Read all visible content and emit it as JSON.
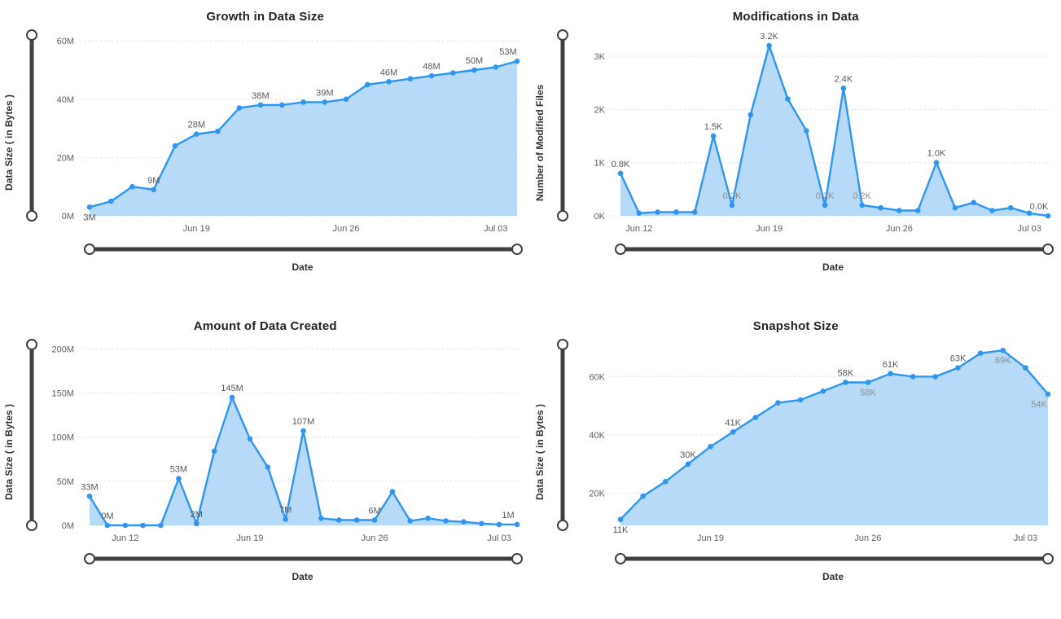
{
  "colors": {
    "line": "#2e96f0",
    "area_fill": "#a9d3f7",
    "grid": "#dddddd",
    "tick_label": "#605e5c",
    "point_label": "#595959",
    "point_label_muted": "#8f8d8b",
    "slider": "#3f3f3f",
    "handle_fill": "#ffffff",
    "title": "#252423"
  },
  "chart_data": [
    {
      "type": "area",
      "title": "Growth in Data Size",
      "xlabel": "Date",
      "ylabel": "Data Size ( in Bytes )",
      "legend": "none",
      "grid": "dotted-horizontal",
      "ylim": [
        0,
        62
      ],
      "yticks": [
        0,
        20,
        40,
        60
      ],
      "ytick_labels": [
        "0M",
        "20M",
        "40M",
        "60M"
      ],
      "xticks": [
        "Jun 19",
        "Jun 26",
        "Jul 03"
      ],
      "x": [
        "Jun 14",
        "Jun 15",
        "Jun 16",
        "Jun 17",
        "Jun 18",
        "Jun 19",
        "Jun 20",
        "Jun 21",
        "Jun 22",
        "Jun 23",
        "Jun 24",
        "Jun 25",
        "Jun 26",
        "Jun 27",
        "Jun 28",
        "Jun 29",
        "Jun 30",
        "Jul 01",
        "Jul 02",
        "Jul 03",
        "Jul 04"
      ],
      "values": [
        3,
        5,
        10,
        9,
        24,
        28,
        29,
        37,
        38,
        38,
        39,
        39,
        40,
        45,
        46,
        47,
        48,
        49,
        50,
        51,
        53
      ],
      "unit": "M (bytes)",
      "point_labels": [
        {
          "index": 0,
          "text": "3M",
          "pos": "below"
        },
        {
          "index": 3,
          "text": "9M",
          "pos": "above"
        },
        {
          "index": 5,
          "text": "28M",
          "pos": "above"
        },
        {
          "index": 8,
          "text": "38M",
          "pos": "above"
        },
        {
          "index": 11,
          "text": "39M",
          "pos": "above"
        },
        {
          "index": 14,
          "text": "46M",
          "pos": "above"
        },
        {
          "index": 16,
          "text": "48M",
          "pos": "above"
        },
        {
          "index": 18,
          "text": "50M",
          "pos": "above"
        },
        {
          "index": 20,
          "text": "53M",
          "pos": "above"
        }
      ]
    },
    {
      "type": "area",
      "title": "Modifications in Data",
      "xlabel": "Date",
      "ylabel": "Number of Modified Files",
      "legend": "none",
      "grid": "dotted-horizontal",
      "ylim": [
        0,
        3.4
      ],
      "yticks": [
        0,
        1,
        2,
        3
      ],
      "ytick_labels": [
        "0K",
        "1K",
        "2K",
        "3K"
      ],
      "xticks": [
        "Jun 12",
        "Jun 19",
        "Jun 26",
        "Jul 03"
      ],
      "x": [
        "Jun 11",
        "Jun 12",
        "Jun 13",
        "Jun 14",
        "Jun 15",
        "Jun 16",
        "Jun 17",
        "Jun 18",
        "Jun 19",
        "Jun 20",
        "Jun 21",
        "Jun 22",
        "Jun 23",
        "Jun 24",
        "Jun 25",
        "Jun 26",
        "Jun 27",
        "Jun 28",
        "Jun 29",
        "Jun 30",
        "Jul 01",
        "Jul 02",
        "Jul 03",
        "Jul 04"
      ],
      "values": [
        0.8,
        0.05,
        0.07,
        0.07,
        0.07,
        1.5,
        0.2,
        1.9,
        3.2,
        2.2,
        1.6,
        0.2,
        2.4,
        0.2,
        0.15,
        0.1,
        0.1,
        1.0,
        0.15,
        0.25,
        0.1,
        0.15,
        0.05,
        0.0
      ],
      "unit": "K (files)",
      "point_labels": [
        {
          "index": 0,
          "text": "0.8K",
          "pos": "above"
        },
        {
          "index": 5,
          "text": "1.5K",
          "pos": "above"
        },
        {
          "index": 6,
          "text": "0.2K",
          "pos": "above",
          "muted": true
        },
        {
          "index": 8,
          "text": "3.2K",
          "pos": "above"
        },
        {
          "index": 11,
          "text": "0.2K",
          "pos": "above",
          "muted": true
        },
        {
          "index": 12,
          "text": "2.4K",
          "pos": "above"
        },
        {
          "index": 13,
          "text": "0.2K",
          "pos": "above",
          "muted": true
        },
        {
          "index": 17,
          "text": "1.0K",
          "pos": "above"
        },
        {
          "index": 23,
          "text": "0.0K",
          "pos": "above"
        }
      ]
    },
    {
      "type": "area",
      "title": "Amount of Data Created",
      "xlabel": "Date",
      "ylabel": "Data Size ( in Bytes )",
      "legend": "none",
      "grid": "dotted-horizontal",
      "ylim": [
        0,
        205
      ],
      "yticks": [
        0,
        50,
        100,
        150,
        200
      ],
      "ytick_labels": [
        "0M",
        "50M",
        "100M",
        "150M",
        "200M"
      ],
      "xticks": [
        "Jun 12",
        "Jun 19",
        "Jun 26",
        "Jul 03"
      ],
      "x": [
        "Jun 10",
        "Jun 11",
        "Jun 12",
        "Jun 13",
        "Jun 14",
        "Jun 15",
        "Jun 16",
        "Jun 17",
        "Jun 18",
        "Jun 19",
        "Jun 20",
        "Jun 21",
        "Jun 22",
        "Jun 23",
        "Jun 24",
        "Jun 25",
        "Jun 26",
        "Jun 27",
        "Jun 28",
        "Jun 29",
        "Jun 30",
        "Jul 01",
        "Jul 02",
        "Jul 03",
        "Jul 04"
      ],
      "values": [
        33,
        0,
        0,
        0,
        0,
        53,
        2,
        84,
        145,
        98,
        66,
        7,
        107,
        8,
        6,
        6,
        6,
        38,
        5,
        8,
        5,
        4,
        2,
        1,
        1
      ],
      "unit": "M (bytes)",
      "point_labels": [
        {
          "index": 0,
          "text": "33M",
          "pos": "above"
        },
        {
          "index": 1,
          "text": "0M",
          "pos": "above"
        },
        {
          "index": 5,
          "text": "53M",
          "pos": "above"
        },
        {
          "index": 6,
          "text": "2M",
          "pos": "above"
        },
        {
          "index": 8,
          "text": "145M",
          "pos": "above"
        },
        {
          "index": 11,
          "text": "7M",
          "pos": "above"
        },
        {
          "index": 12,
          "text": "107M",
          "pos": "above"
        },
        {
          "index": 16,
          "text": "6M",
          "pos": "above"
        },
        {
          "index": 24,
          "text": "1M",
          "pos": "above"
        }
      ]
    },
    {
      "type": "area",
      "title": "Snapshot Size",
      "xlabel": "Date",
      "ylabel": "Data Size ( in Bytes )",
      "legend": "none",
      "grid": "dotted-horizontal",
      "ylim": [
        9,
        71
      ],
      "yticks": [
        20,
        40,
        60
      ],
      "ytick_labels": [
        "20K",
        "40K",
        "60K"
      ],
      "xticks": [
        "Jun 19",
        "Jun 26",
        "Jul 03"
      ],
      "x": [
        "Jun 15",
        "Jun 16",
        "Jun 17",
        "Jun 18",
        "Jun 19",
        "Jun 20",
        "Jun 21",
        "Jun 22",
        "Jun 23",
        "Jun 24",
        "Jun 25",
        "Jun 26",
        "Jun 27",
        "Jun 28",
        "Jun 29",
        "Jun 30",
        "Jul 01",
        "Jul 02",
        "Jul 03",
        "Jul 04"
      ],
      "values": [
        11,
        19,
        24,
        30,
        36,
        41,
        46,
        51,
        52,
        55,
        58,
        58,
        61,
        60,
        60,
        63,
        68,
        69,
        63,
        54
      ],
      "unit": "K (bytes)",
      "point_labels": [
        {
          "index": 0,
          "text": "11K",
          "pos": "below"
        },
        {
          "index": 3,
          "text": "30K",
          "pos": "above"
        },
        {
          "index": 5,
          "text": "41K",
          "pos": "above"
        },
        {
          "index": 10,
          "text": "58K",
          "pos": "above"
        },
        {
          "index": 11,
          "text": "58K",
          "pos": "below",
          "muted": true
        },
        {
          "index": 12,
          "text": "61K",
          "pos": "above"
        },
        {
          "index": 15,
          "text": "63K",
          "pos": "above"
        },
        {
          "index": 17,
          "text": "69K",
          "pos": "below",
          "muted": true
        },
        {
          "index": 19,
          "text": "54K",
          "pos": "below",
          "muted": true
        }
      ]
    }
  ]
}
